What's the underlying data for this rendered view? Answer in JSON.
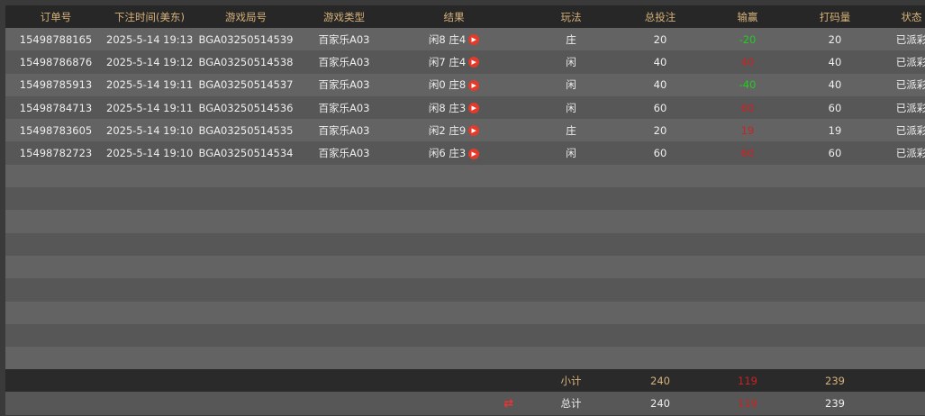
{
  "columns": [
    "订单号",
    "下注时间(美东)",
    "游戏局号",
    "游戏类型",
    "结果",
    "玩法",
    "总投注",
    "输赢",
    "打码量",
    "状态"
  ],
  "rows": [
    {
      "order": "15498788165",
      "time": "2025-5-14 19:13",
      "round": "BGA03250514539",
      "game": "百家乐A03",
      "result": "闲8 庄4",
      "play": "庄",
      "bet": "20",
      "win": "-20",
      "win_color": "#22cc22",
      "valid": "20",
      "status": "已派彩"
    },
    {
      "order": "15498786876",
      "time": "2025-5-14 19:12",
      "round": "BGA03250514538",
      "game": "百家乐A03",
      "result": "闲7 庄4",
      "play": "闲",
      "bet": "40",
      "win": "40",
      "win_color": "#cc2222",
      "valid": "40",
      "status": "已派彩"
    },
    {
      "order": "15498785913",
      "time": "2025-5-14 19:11",
      "round": "BGA03250514537",
      "game": "百家乐A03",
      "result": "闲0 庄8",
      "play": "闲",
      "bet": "40",
      "win": "-40",
      "win_color": "#22cc22",
      "valid": "40",
      "status": "已派彩"
    },
    {
      "order": "15498784713",
      "time": "2025-5-14 19:11",
      "round": "BGA03250514536",
      "game": "百家乐A03",
      "result": "闲8 庄3",
      "play": "闲",
      "bet": "60",
      "win": "60",
      "win_color": "#cc2222",
      "valid": "60",
      "status": "已派彩"
    },
    {
      "order": "15498783605",
      "time": "2025-5-14 19:10",
      "round": "BGA03250514535",
      "game": "百家乐A03",
      "result": "闲2 庄9",
      "play": "庄",
      "bet": "20",
      "win": "19",
      "win_color": "#cc2222",
      "valid": "19",
      "status": "已派彩"
    },
    {
      "order": "15498782723",
      "time": "2025-5-14 19:10",
      "round": "BGA03250514534",
      "game": "百家乐A03",
      "result": "闲6 庄3",
      "play": "闲",
      "bet": "60",
      "win": "60",
      "win_color": "#cc2222",
      "valid": "60",
      "status": "已派彩"
    }
  ],
  "subtotal": {
    "label": "小计",
    "bet": "240",
    "win": "119",
    "valid": "239"
  },
  "total": {
    "label": "总计",
    "bet": "240",
    "win": "119",
    "valid": "239",
    "icon": "refresh-icon"
  },
  "colors": {
    "header_text": "#d6b27a",
    "loss": "#22cc22",
    "win": "#cc2222",
    "play_icon": "#e23b2b"
  }
}
